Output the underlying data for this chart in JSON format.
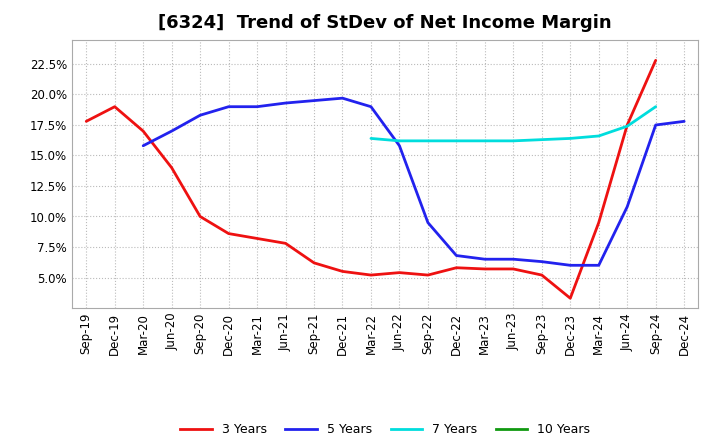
{
  "title": "[6324]  Trend of StDev of Net Income Margin",
  "x_labels": [
    "Sep-19",
    "Dec-19",
    "Mar-20",
    "Jun-20",
    "Sep-20",
    "Dec-20",
    "Mar-21",
    "Jun-21",
    "Sep-21",
    "Dec-21",
    "Mar-22",
    "Jun-22",
    "Sep-22",
    "Dec-22",
    "Mar-23",
    "Jun-23",
    "Sep-23",
    "Dec-23",
    "Mar-24",
    "Jun-24",
    "Sep-24",
    "Dec-24"
  ],
  "series": {
    "3 Years": {
      "color": "#EE1111",
      "linewidth": 2.0,
      "values": [
        0.178,
        0.19,
        0.17,
        0.14,
        0.1,
        0.086,
        0.082,
        0.078,
        0.062,
        0.055,
        0.052,
        0.054,
        0.052,
        0.058,
        0.057,
        0.057,
        0.052,
        0.033,
        0.095,
        0.175,
        0.228,
        null
      ]
    },
    "5 Years": {
      "color": "#2222EE",
      "linewidth": 2.0,
      "values": [
        null,
        null,
        0.158,
        0.17,
        0.183,
        0.19,
        0.19,
        0.193,
        0.195,
        0.197,
        0.19,
        0.158,
        0.095,
        0.068,
        0.065,
        0.065,
        0.063,
        0.06,
        0.06,
        0.108,
        0.175,
        0.178
      ]
    },
    "7 Years": {
      "color": "#00DDDD",
      "linewidth": 2.0,
      "values": [
        null,
        null,
        null,
        null,
        null,
        null,
        null,
        null,
        null,
        null,
        0.164,
        0.162,
        0.162,
        0.162,
        0.162,
        0.162,
        0.163,
        0.164,
        0.166,
        0.174,
        0.19,
        null
      ]
    },
    "10 Years": {
      "color": "#119911",
      "linewidth": 2.0,
      "values": [
        null,
        null,
        null,
        null,
        null,
        null,
        null,
        null,
        null,
        null,
        null,
        null,
        null,
        null,
        null,
        null,
        null,
        null,
        null,
        null,
        null,
        null
      ]
    }
  },
  "ylim": [
    0.025,
    0.245
  ],
  "yticks": [
    0.05,
    0.075,
    0.1,
    0.125,
    0.15,
    0.175,
    0.2,
    0.225
  ],
  "background_color": "#FFFFFF",
  "plot_bg_color": "#FFFFFF",
  "grid_color": "#BBBBBB",
  "title_fontsize": 13,
  "tick_fontsize": 8.5
}
